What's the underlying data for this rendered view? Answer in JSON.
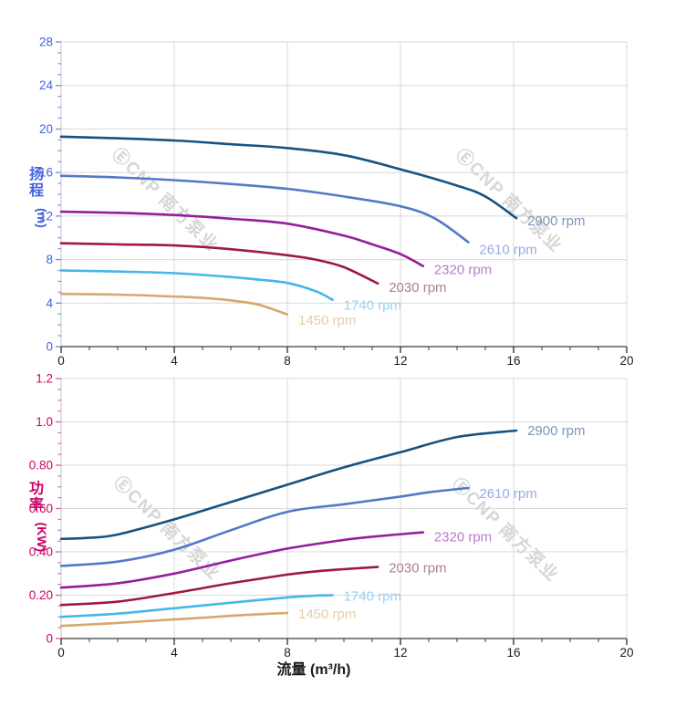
{
  "watermark": {
    "text": "ⒺCNP 南方泵业",
    "color": "#d6d6d6"
  },
  "x_axis": {
    "title": "流量 (m³/h)",
    "range": [
      0,
      20
    ],
    "tick_values": [
      0,
      4,
      8,
      12,
      16,
      20
    ],
    "tick_labels": [
      "0",
      "4",
      "8",
      "12",
      "16",
      "20"
    ],
    "minor_step": 1,
    "tick_color": "#1a1a1a",
    "title_color": "#1a1a1a"
  },
  "chart_data": [
    {
      "type": "line",
      "id": "head-chart",
      "ylabel": "扬程",
      "ylabel_unit": "(m)",
      "axis_color": "#4164dd",
      "tick_mark_color": "#7b92e0",
      "ylim": [
        0,
        28
      ],
      "yminor_step": 1,
      "grid": true,
      "legend_position": "end-of-curve",
      "yticks": [
        {
          "v": 0,
          "label": "0"
        },
        {
          "v": 4,
          "label": "4"
        },
        {
          "v": 8,
          "label": "8"
        },
        {
          "v": 12,
          "label": "12"
        },
        {
          "v": 16,
          "label": "16"
        },
        {
          "v": 20,
          "label": "20"
        },
        {
          "v": 24,
          "label": "24"
        },
        {
          "v": 28,
          "label": "28"
        }
      ],
      "series": [
        {
          "name": "2900 rpm",
          "color": "#175380",
          "label_color": "#7d95bb",
          "label_dy": 8,
          "points": [
            [
              0,
              19.3
            ],
            [
              2,
              19.15
            ],
            [
              4,
              18.95
            ],
            [
              6,
              18.6
            ],
            [
              8,
              18.25
            ],
            [
              10,
              17.6
            ],
            [
              12,
              16.3
            ],
            [
              14,
              14.8
            ],
            [
              15,
              13.8
            ],
            [
              16.1,
              11.8
            ]
          ]
        },
        {
          "name": "2610 rpm",
          "color": "#5478c8",
          "label_color": "#94ade2",
          "label_dy": 13,
          "points": [
            [
              0,
              15.7
            ],
            [
              2,
              15.55
            ],
            [
              4,
              15.3
            ],
            [
              6,
              14.95
            ],
            [
              8,
              14.5
            ],
            [
              10,
              13.8
            ],
            [
              12,
              12.9
            ],
            [
              13.2,
              11.8
            ],
            [
              14.4,
              9.6
            ]
          ]
        },
        {
          "name": "2320 rpm",
          "color": "#941e9b",
          "label_color": "#b77cc8",
          "label_dy": 9,
          "points": [
            [
              0,
              12.4
            ],
            [
              2,
              12.3
            ],
            [
              4,
              12.1
            ],
            [
              6,
              11.75
            ],
            [
              8,
              11.3
            ],
            [
              10,
              10.2
            ],
            [
              11,
              9.4
            ],
            [
              12,
              8.5
            ],
            [
              12.8,
              7.4
            ]
          ]
        },
        {
          "name": "2030 rpm",
          "color": "#9c1b3f",
          "label_color": "#ad7f95",
          "label_dy": 9,
          "points": [
            [
              0,
              9.5
            ],
            [
              2,
              9.4
            ],
            [
              4,
              9.3
            ],
            [
              6,
              8.95
            ],
            [
              8,
              8.4
            ],
            [
              9,
              8.0
            ],
            [
              10,
              7.3
            ],
            [
              11.2,
              5.8
            ]
          ]
        },
        {
          "name": "1740 rpm",
          "color": "#47b5e9",
          "label_color": "#96d1f2",
          "label_dy": 11,
          "points": [
            [
              0,
              7.0
            ],
            [
              2,
              6.9
            ],
            [
              4,
              6.75
            ],
            [
              6,
              6.4
            ],
            [
              7,
              6.15
            ],
            [
              8,
              5.85
            ],
            [
              9,
              5.1
            ],
            [
              9.6,
              4.3
            ]
          ]
        },
        {
          "name": "1450 rpm",
          "color": "#d7a76d",
          "label_color": "#e7cda6",
          "label_dy": 11,
          "points": [
            [
              0,
              4.85
            ],
            [
              2,
              4.78
            ],
            [
              4,
              4.6
            ],
            [
              5,
              4.48
            ],
            [
              6,
              4.25
            ],
            [
              7,
              3.85
            ],
            [
              8,
              2.95
            ]
          ]
        }
      ]
    },
    {
      "type": "line",
      "id": "power-chart",
      "ylabel": "功率",
      "ylabel_unit": "(KW)",
      "axis_color": "#cc0066",
      "tick_mark_color": "#e06aa8",
      "ylim": [
        0,
        1.2
      ],
      "yminor_step": 0.05,
      "grid": true,
      "legend_position": "end-of-curve",
      "xlabel": "流量 (m³/h)",
      "yticks": [
        {
          "v": 0,
          "label": "0"
        },
        {
          "v": 0.2,
          "label": "0.20"
        },
        {
          "v": 0.4,
          "label": "0.40"
        },
        {
          "v": 0.6,
          "label": "0.60"
        },
        {
          "v": 0.8,
          "label": "0.80"
        },
        {
          "v": 1.0,
          "label": "1.0"
        },
        {
          "v": 1.2,
          "label": "1.2"
        }
      ],
      "series": [
        {
          "name": "2900 rpm",
          "color": "#175380",
          "label_color": "#7d95bb",
          "label_dy": 5,
          "points": [
            [
              0,
              0.46
            ],
            [
              1,
              0.465
            ],
            [
              2,
              0.48
            ],
            [
              4,
              0.55
            ],
            [
              6,
              0.63
            ],
            [
              8,
              0.71
            ],
            [
              10,
              0.79
            ],
            [
              12,
              0.86
            ],
            [
              14,
              0.93
            ],
            [
              16.1,
              0.96
            ]
          ]
        },
        {
          "name": "2610 rpm",
          "color": "#5478c8",
          "label_color": "#94ade2",
          "label_dy": 11,
          "points": [
            [
              0,
              0.335
            ],
            [
              2,
              0.355
            ],
            [
              4,
              0.41
            ],
            [
              6,
              0.5
            ],
            [
              8,
              0.585
            ],
            [
              10,
              0.62
            ],
            [
              12,
              0.655
            ],
            [
              13,
              0.675
            ],
            [
              14.4,
              0.695
            ]
          ]
        },
        {
          "name": "2320 rpm",
          "color": "#941e9b",
          "label_color": "#b77cc8",
          "label_dy": 10,
          "points": [
            [
              0,
              0.235
            ],
            [
              2,
              0.255
            ],
            [
              4,
              0.3
            ],
            [
              6,
              0.36
            ],
            [
              8,
              0.415
            ],
            [
              10,
              0.455
            ],
            [
              11,
              0.47
            ],
            [
              12.8,
              0.49
            ]
          ]
        },
        {
          "name": "2030 rpm",
          "color": "#9c1b3f",
          "label_color": "#ad7f95",
          "label_dy": 6,
          "points": [
            [
              0,
              0.155
            ],
            [
              2,
              0.17
            ],
            [
              4,
              0.21
            ],
            [
              6,
              0.255
            ],
            [
              8,
              0.295
            ],
            [
              9,
              0.31
            ],
            [
              10,
              0.32
            ],
            [
              11.2,
              0.33
            ]
          ]
        },
        {
          "name": "1740 rpm",
          "color": "#47b5e9",
          "label_color": "#96d1f2",
          "label_dy": 6,
          "points": [
            [
              0,
              0.1
            ],
            [
              2,
              0.115
            ],
            [
              4,
              0.14
            ],
            [
              6,
              0.165
            ],
            [
              8,
              0.19
            ],
            [
              9,
              0.198
            ],
            [
              9.6,
              0.2
            ]
          ]
        },
        {
          "name": "1450 rpm",
          "color": "#d7a76d",
          "label_color": "#e7cda6",
          "label_dy": 6,
          "points": [
            [
              0,
              0.058
            ],
            [
              2,
              0.072
            ],
            [
              4,
              0.088
            ],
            [
              5,
              0.096
            ],
            [
              6,
              0.105
            ],
            [
              7,
              0.112
            ],
            [
              8,
              0.118
            ]
          ]
        }
      ]
    }
  ]
}
